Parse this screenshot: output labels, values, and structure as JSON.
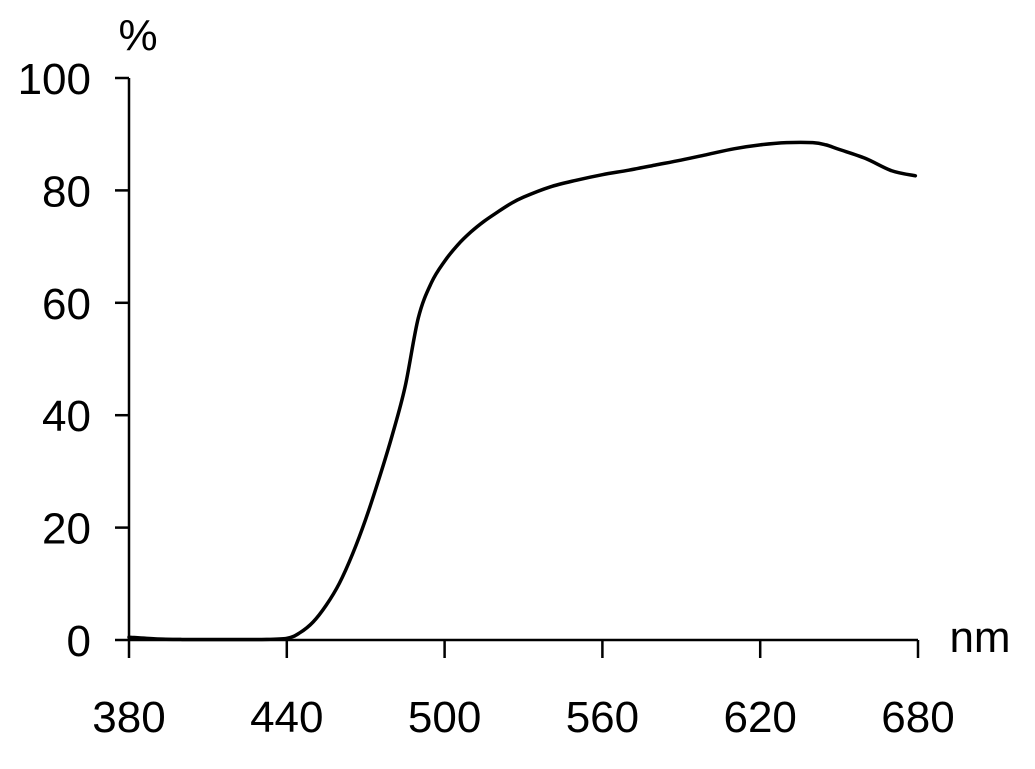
{
  "chart_data": {
    "type": "line",
    "title": "",
    "xlabel": "nm",
    "ylabel": "%",
    "xlim": [
      380,
      680
    ],
    "ylim": [
      0,
      100
    ],
    "x_ticks": [
      "380",
      "440",
      "500",
      "560",
      "620",
      "680"
    ],
    "y_ticks": [
      "0",
      "20",
      "40",
      "60",
      "80",
      "100"
    ],
    "grid": false,
    "legend": "none",
    "line_color": "#000000",
    "series": [
      {
        "x": [
          380,
          390,
          400,
          410,
          420,
          430,
          440,
          445,
          450,
          455,
          460,
          465,
          470,
          475,
          480,
          485,
          490,
          495,
          500,
          505,
          510,
          515,
          520,
          525,
          530,
          540,
          550,
          560,
          570,
          580,
          590,
          600,
          610,
          620,
          630,
          640,
          645,
          650,
          660,
          670,
          679
        ],
        "y": [
          0.5,
          0.2,
          0.1,
          0.1,
          0.1,
          0.1,
          0.3,
          1.3,
          3.2,
          6.2,
          10.1,
          15.3,
          21.5,
          28.6,
          36.3,
          45.1,
          57.3,
          63.6,
          67.4,
          70.3,
          72.6,
          74.5,
          76.1,
          77.6,
          78.8,
          80.6,
          81.8,
          82.8,
          83.6,
          84.5,
          85.4,
          86.4,
          87.4,
          88.1,
          88.5,
          88.5,
          88.1,
          87.3,
          85.7,
          83.5,
          82.6
        ]
      }
    ]
  }
}
